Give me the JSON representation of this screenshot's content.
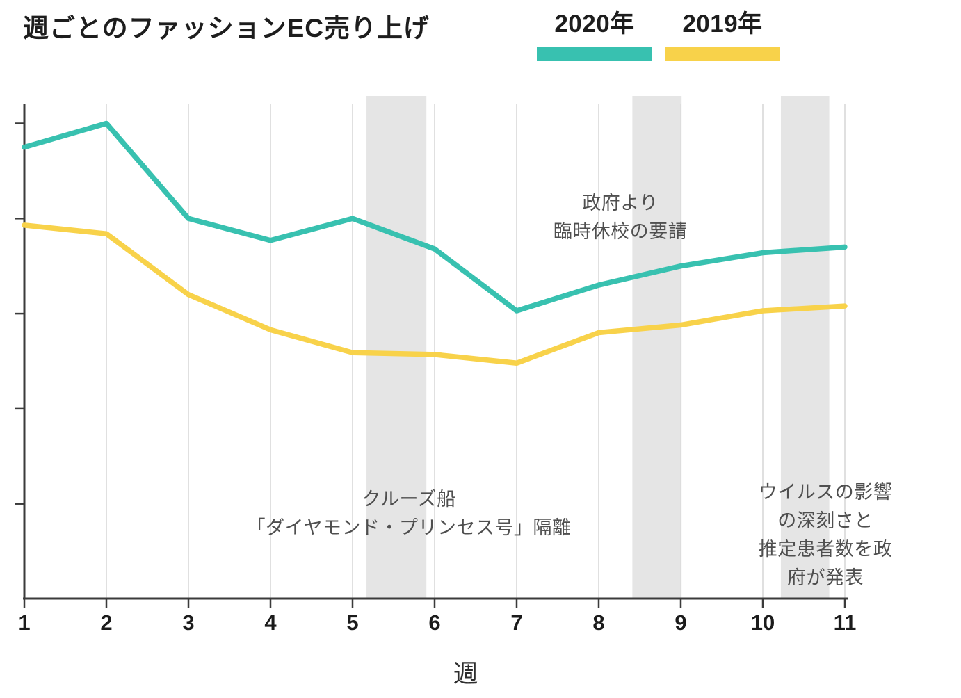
{
  "header": {
    "title": "週ごとのファッションEC売り上げ"
  },
  "chart_data": {
    "type": "line",
    "title": "週ごとのファッションEC売り上げ",
    "xlabel": "週",
    "ylabel": "",
    "x": [
      1,
      2,
      3,
      4,
      5,
      6,
      7,
      8,
      9,
      10,
      11
    ],
    "x_tick_labels": [
      "1",
      "2",
      "3",
      "4",
      "5",
      "6",
      "7",
      "8",
      "9",
      "10",
      "11"
    ],
    "xlim": [
      1,
      11
    ],
    "ylim": [
      0,
      5.2
    ],
    "y_tick_values": [
      1,
      2,
      3,
      4,
      5
    ],
    "y_tick_labels": [],
    "grid": true,
    "legend_position": "top-right",
    "series": [
      {
        "name": "2020年",
        "color": "#38c1b0",
        "values": [
          4.75,
          5.0,
          4.0,
          3.77,
          4.0,
          3.68,
          3.03,
          3.3,
          3.5,
          3.64,
          3.7
        ]
      },
      {
        "name": "2019年",
        "color": "#f8d24a",
        "values": [
          3.93,
          3.84,
          3.2,
          2.83,
          2.59,
          2.57,
          2.48,
          2.8,
          2.88,
          3.03,
          3.08
        ]
      }
    ],
    "highlight_bands": [
      {
        "from_week": 5.17,
        "to_week": 5.9
      },
      {
        "from_week": 8.41,
        "to_week": 9.01
      },
      {
        "from_week": 10.22,
        "to_week": 10.81
      }
    ],
    "band_color": "#e5e5e5",
    "annotations": [
      {
        "id": "school-closure",
        "text": "政府より\n臨時休校の要請"
      },
      {
        "id": "cruise-ship",
        "text": "クルーズ船\n「ダイヤモンド・プリンセス号」隔離"
      },
      {
        "id": "virus-announcement",
        "text": "ウイルスの影響の深刻さと\n推定患者数を政府が発表"
      }
    ]
  }
}
